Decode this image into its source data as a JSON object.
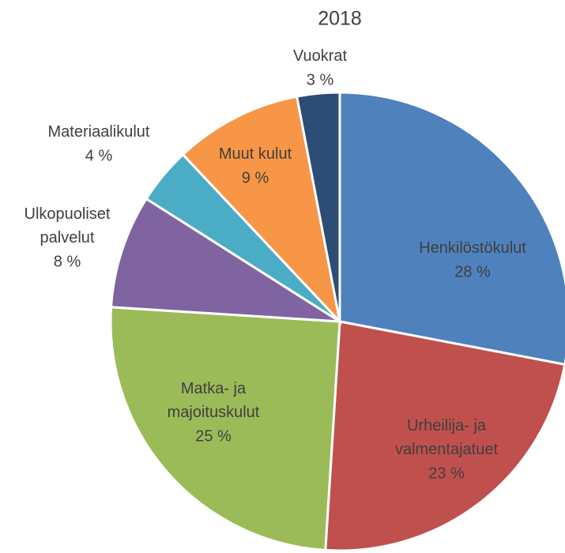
{
  "chart_data": {
    "type": "pie",
    "title": "2018",
    "categories": [
      "Henkilöstökulut",
      "Urheilija- ja\nvalmentajatuet",
      "Matka- ja\nmajoituskulut",
      "Ulkopuoliset\npalvelut",
      "Materiaalikulut",
      "Muut kulut",
      "Vuokrat"
    ],
    "values": [
      28,
      23,
      25,
      8,
      4,
      9,
      3
    ],
    "value_labels": [
      "28 %",
      "23 %",
      "25 %",
      "8 %",
      "4 %",
      "9 %",
      "3 %"
    ],
    "colors": [
      "#4f81bd",
      "#c0504d",
      "#9bbb59",
      "#8064a2",
      "#4bacc6",
      "#f79646",
      "#2c4d75"
    ]
  }
}
